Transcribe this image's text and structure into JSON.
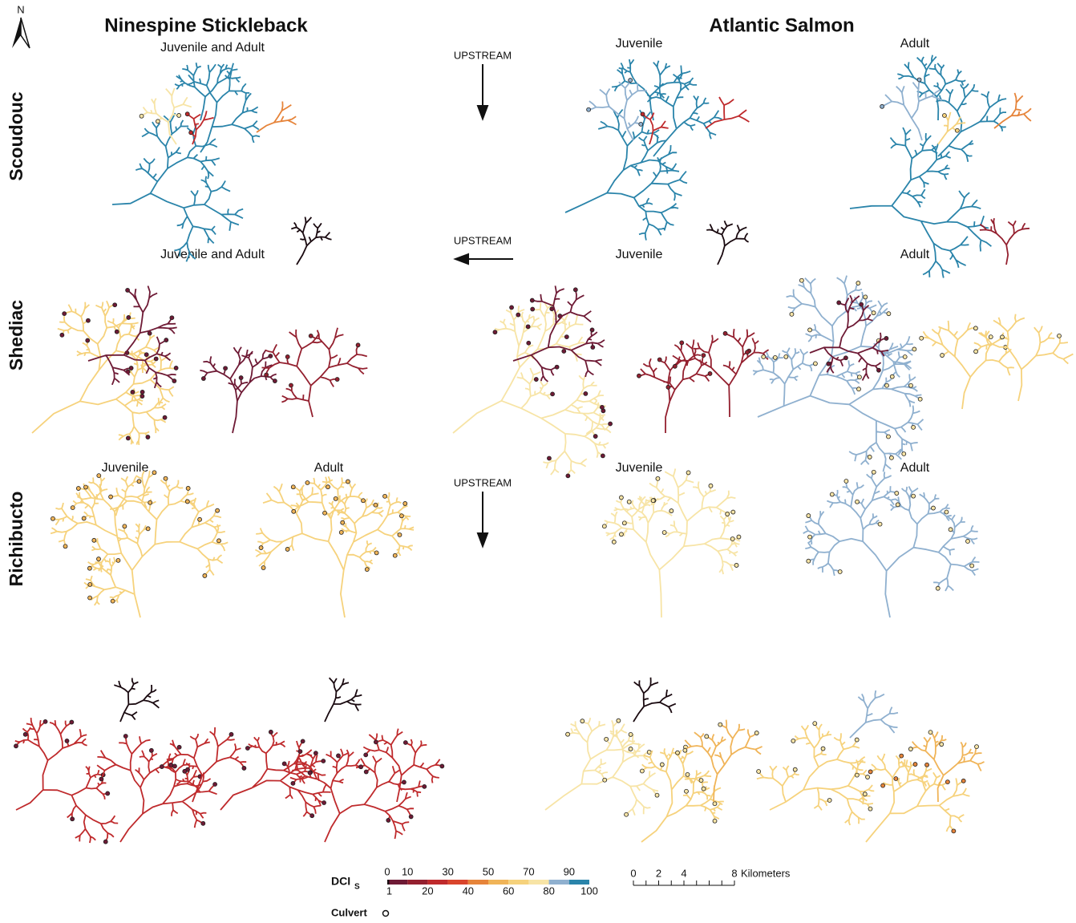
{
  "compass": "N",
  "columns": [
    {
      "title": "Ninespine Stickleback"
    },
    {
      "title": "Atlantic Salmon"
    }
  ],
  "rows": [
    {
      "label": "Scoudouc",
      "upstream": "UPSTREAM",
      "panels": [
        {
          "subtitle": "Juvenile and Adult"
        },
        {
          "subtitle": "Juvenile"
        },
        {
          "subtitle": "Adult"
        }
      ]
    },
    {
      "label": "Shediac",
      "upstream": "UPSTREAM",
      "panels": [
        {
          "subtitle": "Juvenile and Adult"
        },
        {
          "subtitle": "Juvenile"
        },
        {
          "subtitle": "Adult"
        }
      ]
    },
    {
      "label": "Richibucto",
      "upstream": "UPSTREAM",
      "panels": [
        {
          "subtitle": "Juvenile"
        },
        {
          "subtitle": "Adult"
        },
        {
          "subtitle": "Juvenile"
        },
        {
          "subtitle": "Adult"
        }
      ]
    }
  ],
  "legend": {
    "dci_label": "DCI",
    "dci_subscript": "S",
    "top_ticks": [
      0,
      10,
      30,
      50,
      70,
      90
    ],
    "bottom_ticks": [
      1,
      20,
      40,
      60,
      80,
      100
    ],
    "bins": [
      0,
      1,
      10,
      20,
      30,
      40,
      50,
      60,
      70,
      80,
      90,
      100
    ],
    "colors": [
      "#1a0a10",
      "#6e1a35",
      "#94202f",
      "#bf2a2c",
      "#d9452c",
      "#e6843a",
      "#f0b458",
      "#f6d27c",
      "#f7e4a6",
      "#8fb0cf",
      "#2a84aa"
    ],
    "culvert": "Culvert"
  },
  "scale_bar": {
    "ticks": [
      0,
      2,
      4,
      8
    ],
    "unit": "Kilometers"
  }
}
